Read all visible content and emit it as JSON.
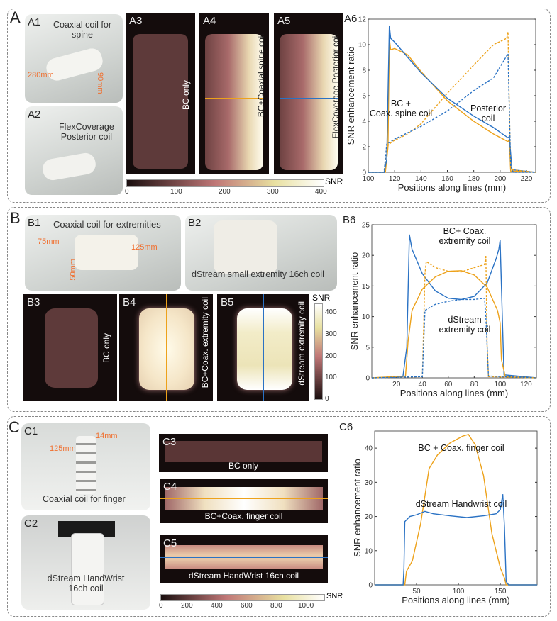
{
  "panels": {
    "A": "A",
    "A1": "A1",
    "A2": "A2",
    "A3": "A3",
    "A4": "A4",
    "A5": "A5",
    "A6": "A6",
    "B": "B",
    "B1": "B1",
    "B2": "B2",
    "B3": "B3",
    "B4": "B4",
    "B5": "B5",
    "B6": "B6",
    "C": "C",
    "C1": "C1",
    "C2": "C2",
    "C3": "C3",
    "C4": "C4",
    "C5": "C5",
    "C6": "C6"
  },
  "A": {
    "a1_title_1": "Coaxial coil for",
    "a1_title_2": "spine",
    "a1_dim_1": "280mm",
    "a1_dim_2": "90mm",
    "a2_title_1": "FlexCoverage",
    "a2_title_2": "Posterior coil",
    "a3_label": "BC only",
    "a4_label": "BC+Coaxial spine coil",
    "a5_label": "FlexCoverage Posterior coil",
    "colorbar": {
      "label": "SNR",
      "ticks": [
        "0",
        "100",
        "200",
        "300",
        "400"
      ]
    }
  },
  "B": {
    "b1_title": "Coaxial coil for extremities",
    "b1_dims": [
      "75mm",
      "125mm",
      "50mm"
    ],
    "b2_title": "dStream small extremity 16ch coil",
    "b3_label": "BC only",
    "b4_label": "BC+Coax. extremity coil",
    "b5_label": "dStream extremity coil",
    "colorbar": {
      "label": "SNR",
      "ticks": [
        "400",
        "300",
        "200",
        "100",
        "0"
      ]
    }
  },
  "C": {
    "c1_title": "Coaxial coil for finger",
    "c1_dims": [
      "125mm",
      "14mm"
    ],
    "c2_title_1": "dStream HandWrist",
    "c2_title_2": "16ch coil",
    "c3_label": "BC only",
    "c4_label": "BC+Coax. finger coil",
    "c5_label": "dStream HandWrist 16ch coil",
    "colorbar": {
      "label": "SNR",
      "ticks": [
        "0",
        "200",
        "400",
        "600",
        "800",
        "1000"
      ]
    }
  },
  "colors": {
    "blue": "#2a72c4",
    "yellow": "#eda21b",
    "orange": "#f07030"
  },
  "chart_data": [
    {
      "id": "A6",
      "type": "line",
      "xlabel": "Positions along lines (mm)",
      "ylabel": "SNR enhancement ratio",
      "xlim": [
        100,
        227
      ],
      "ylim": [
        0,
        12
      ],
      "xticks": [
        100,
        120,
        140,
        160,
        180,
        200,
        220
      ],
      "yticks": [
        0,
        2,
        4,
        6,
        8,
        10,
        12
      ],
      "annotations": [
        [
          "BC +",
          "Coax. spine coil"
        ],
        [
          "Posterior",
          "coil"
        ]
      ],
      "series": [
        {
          "name": "BC+Coaxial spine coil (vertical)",
          "color": "#eda21b",
          "dash": false,
          "points": [
            [
              100,
              0
            ],
            [
              113,
              0
            ],
            [
              115,
              2
            ],
            [
              116,
              10.5
            ],
            [
              117,
              9.6
            ],
            [
              120,
              9.7
            ],
            [
              130,
              9.2
            ],
            [
              140,
              7.9
            ],
            [
              160,
              5.6
            ],
            [
              180,
              4
            ],
            [
              195,
              3
            ],
            [
              206,
              2.4
            ],
            [
              207,
              2.6
            ],
            [
              208,
              0.1
            ],
            [
              227,
              0
            ]
          ]
        },
        {
          "name": "FlexCoverage Posterior coil (vertical)",
          "color": "#2a72c4",
          "dash": false,
          "points": [
            [
              100,
              0
            ],
            [
              112,
              0
            ],
            [
              114,
              1
            ],
            [
              116,
              11.5
            ],
            [
              117,
              10.5
            ],
            [
              120,
              10.2
            ],
            [
              130,
              9
            ],
            [
              140,
              7.8
            ],
            [
              160,
              5.8
            ],
            [
              180,
              4.4
            ],
            [
              195,
              3.5
            ],
            [
              206,
              2.7
            ],
            [
              207,
              2.8
            ],
            [
              209,
              0.2
            ],
            [
              227,
              0
            ]
          ]
        },
        {
          "name": "BC+Coaxial spine coil (horizontal)",
          "color": "#eda21b",
          "dash": true,
          "points": [
            [
              100,
              0
            ],
            [
              112,
              0
            ],
            [
              114,
              2
            ],
            [
              118,
              2.4
            ],
            [
              130,
              3
            ],
            [
              140,
              3.8
            ],
            [
              160,
              6.2
            ],
            [
              180,
              8.4
            ],
            [
              195,
              10
            ],
            [
              205,
              10.5
            ],
            [
              206,
              11
            ],
            [
              207,
              5
            ],
            [
              208,
              0.2
            ],
            [
              227,
              0
            ]
          ]
        },
        {
          "name": "FlexCoverage Posterior coil (horizontal)",
          "color": "#2a72c4",
          "dash": true,
          "points": [
            [
              100,
              0
            ],
            [
              112,
              0
            ],
            [
              114,
              2.2
            ],
            [
              120,
              2.6
            ],
            [
              140,
              3.6
            ],
            [
              160,
              4.8
            ],
            [
              180,
              6.4
            ],
            [
              195,
              7.4
            ],
            [
              206,
              9.3
            ],
            [
              208,
              0.5
            ],
            [
              210,
              0
            ],
            [
              227,
              0
            ]
          ]
        }
      ]
    },
    {
      "id": "B6",
      "type": "line",
      "xlabel": "Positions along lines (mm)",
      "ylabel": "SNR enhancement ratio",
      "xlim": [
        1,
        128
      ],
      "ylim": [
        0,
        25
      ],
      "xticks": [
        20,
        40,
        60,
        80,
        100,
        120
      ],
      "yticks": [
        0,
        5,
        10,
        15,
        20,
        25
      ],
      "annotations": [
        [
          "BC+ Coax.",
          "extremity coil"
        ],
        [
          "dStream",
          "extremity coil"
        ]
      ],
      "series": [
        {
          "name": "dStream extremity coil (vertical)",
          "color": "#2a72c4",
          "dash": false,
          "points": [
            [
              1,
              0
            ],
            [
              25,
              0.2
            ],
            [
              28,
              5
            ],
            [
              30,
              23.4
            ],
            [
              32,
              21
            ],
            [
              40,
              17
            ],
            [
              50,
              14.2
            ],
            [
              60,
              13
            ],
            [
              70,
              12.8
            ],
            [
              80,
              13.3
            ],
            [
              90,
              15.5
            ],
            [
              97,
              19.5
            ],
            [
              99,
              21
            ],
            [
              100,
              22.5
            ],
            [
              101,
              15
            ],
            [
              103,
              0.5
            ],
            [
              128,
              0
            ]
          ]
        },
        {
          "name": "BC+Coax. extremity coil (vertical)",
          "color": "#eda21b",
          "dash": false,
          "points": [
            [
              1,
              0
            ],
            [
              27,
              0.3
            ],
            [
              29,
              6
            ],
            [
              32,
              11
            ],
            [
              40,
              14.5
            ],
            [
              50,
              16.5
            ],
            [
              60,
              17.4
            ],
            [
              70,
              17.5
            ],
            [
              80,
              16.8
            ],
            [
              90,
              14.8
            ],
            [
              98,
              11
            ],
            [
              100,
              9
            ],
            [
              101,
              3
            ],
            [
              104,
              0.2
            ],
            [
              128,
              0
            ]
          ]
        },
        {
          "name": "BC+Coax. extremity coil (horizontal)",
          "color": "#eda21b",
          "dash": true,
          "points": [
            [
              1,
              0
            ],
            [
              40,
              0.2
            ],
            [
              42,
              17
            ],
            [
              43,
              19
            ],
            [
              50,
              18
            ],
            [
              60,
              17.4
            ],
            [
              70,
              17.3
            ],
            [
              80,
              18
            ],
            [
              88,
              18.5
            ],
            [
              89,
              20
            ],
            [
              90,
              5
            ],
            [
              91,
              0.2
            ],
            [
              128,
              0
            ]
          ]
        },
        {
          "name": "dStream extremity coil (horizontal)",
          "color": "#2a72c4",
          "dash": true,
          "points": [
            [
              1,
              0
            ],
            [
              40,
              0.2
            ],
            [
              42,
              11
            ],
            [
              50,
              12
            ],
            [
              60,
              12.5
            ],
            [
              70,
              12.8
            ],
            [
              80,
              12.8
            ],
            [
              88,
              13
            ],
            [
              89,
              10
            ],
            [
              91,
              0.3
            ],
            [
              128,
              0
            ]
          ]
        }
      ]
    },
    {
      "id": "C6",
      "type": "line",
      "xlabel": "Positions along lines (mm)",
      "ylabel": "SNR enhancement ratio",
      "xlim": [
        0,
        194
      ],
      "ylim": [
        0,
        45
      ],
      "xticks": [
        50,
        100,
        150
      ],
      "yticks": [
        0,
        10,
        20,
        30,
        40
      ],
      "annotations": [
        [
          "BC + Coax. finger coil"
        ],
        [
          "dStream Handwrist coil"
        ]
      ],
      "series": [
        {
          "name": "BC + Coax. finger coil",
          "color": "#eda21b",
          "dash": false,
          "points": [
            [
              0,
              0
            ],
            [
              36,
              0
            ],
            [
              38,
              4
            ],
            [
              45,
              7
            ],
            [
              55,
              18
            ],
            [
              65,
              34
            ],
            [
              75,
              38
            ],
            [
              90,
              41.5
            ],
            [
              105,
              43.5
            ],
            [
              112,
              44
            ],
            [
              120,
              41
            ],
            [
              130,
              32
            ],
            [
              140,
              15
            ],
            [
              150,
              5
            ],
            [
              155,
              2
            ],
            [
              157,
              0
            ],
            [
              194,
              0
            ]
          ]
        },
        {
          "name": "dStream Handwrist coil",
          "color": "#2a72c4",
          "dash": false,
          "points": [
            [
              0,
              0
            ],
            [
              34,
              0
            ],
            [
              35,
              5
            ],
            [
              36,
              18.5
            ],
            [
              38,
              19
            ],
            [
              42,
              20
            ],
            [
              50,
              20.5
            ],
            [
              60,
              21.5
            ],
            [
              70,
              20.8
            ],
            [
              90,
              20.2
            ],
            [
              110,
              19.7
            ],
            [
              130,
              20.2
            ],
            [
              145,
              20.8
            ],
            [
              150,
              22
            ],
            [
              152,
              25
            ],
            [
              153,
              26.5
            ],
            [
              155,
              17
            ],
            [
              157,
              1
            ],
            [
              160,
              0
            ],
            [
              194,
              0
            ]
          ]
        }
      ]
    }
  ]
}
